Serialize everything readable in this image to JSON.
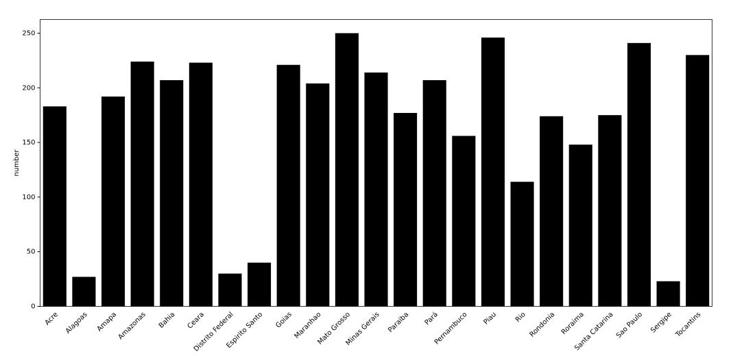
{
  "chart_data": {
    "type": "bar",
    "y_label": "number",
    "categories": [
      "Acre",
      "Alagoas",
      "Amapa",
      "Amazonas",
      "Bahia",
      "Ceara",
      "Distrito Federal",
      "Espirito Santo",
      "Goias",
      "Maranhao",
      "Mato Grosso",
      "Minas Gerais",
      "Paraiba",
      "Pará",
      "Pernambuco",
      "Piau",
      "Rio",
      "Rondonia",
      "Roraima",
      "Santa Catarina",
      "Sao Paulo",
      "Sergipe",
      "Tocantins"
    ],
    "values": [
      183,
      27,
      192,
      224,
      207,
      223,
      30,
      40,
      221,
      204,
      250,
      214,
      177,
      207,
      156,
      246,
      114,
      174,
      148,
      175,
      241,
      23,
      230
    ],
    "color": "#000000",
    "ylim": [
      0,
      262.5
    ],
    "yticks": [
      0,
      50,
      100,
      150,
      200,
      250
    ],
    "grid": false
  }
}
